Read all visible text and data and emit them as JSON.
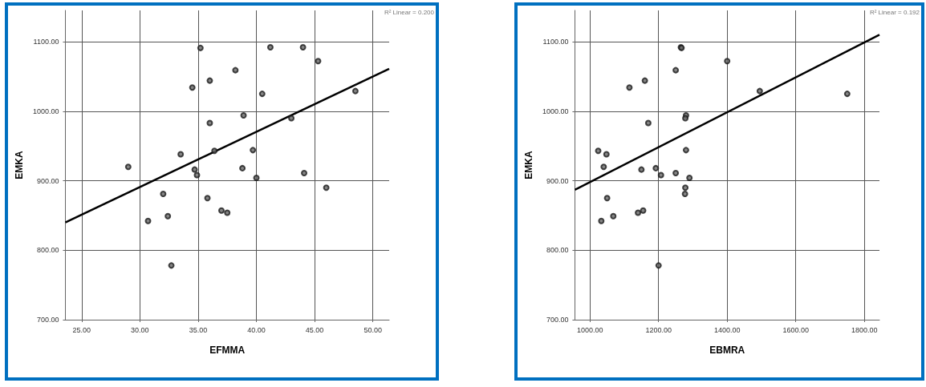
{
  "chart_data": [
    {
      "type": "scatter",
      "xlabel": "EFMMA",
      "ylabel": "EMKA",
      "xlim": [
        23.6,
        51.4
      ],
      "ylim": [
        700,
        1145
      ],
      "xticks": [
        {
          "value": 25,
          "label": "25.00"
        },
        {
          "value": 30,
          "label": "30.00"
        },
        {
          "value": 35,
          "label": "35.00"
        },
        {
          "value": 40,
          "label": "40.00"
        },
        {
          "value": 45,
          "label": "45.00"
        },
        {
          "value": 50,
          "label": "50.00"
        }
      ],
      "yticks": [
        {
          "value": 700,
          "label": "700.00"
        },
        {
          "value": 800,
          "label": "800.00"
        },
        {
          "value": 900,
          "label": "900.00"
        },
        {
          "value": 1000,
          "label": "1000.00"
        },
        {
          "value": 1100,
          "label": "1100.00"
        }
      ],
      "grid": true,
      "annotations": [
        "R² Linear = 0.200"
      ],
      "series": [
        {
          "marker": "circle",
          "color": "#1a1a1a",
          "x": [
            29,
            30.7,
            32,
            32.4,
            32.7,
            33.5,
            34.5,
            34.7,
            34.9,
            35.2,
            35.8,
            36,
            36,
            36.4,
            37,
            37.5,
            38.2,
            38.8,
            38.9,
            39.7,
            40,
            40.5,
            41.2,
            43,
            44,
            44.1,
            45.3,
            46,
            48.5
          ],
          "values": [
            920,
            842,
            881,
            849,
            778,
            938,
            1034,
            916,
            908,
            1091,
            875,
            1044,
            983,
            943,
            857,
            854,
            1059,
            918,
            994,
            944,
            904,
            1025,
            1092,
            990,
            1092,
            911,
            1072,
            890,
            1029
          ]
        },
        {
          "type": "line",
          "marker": "none",
          "color": "#000000",
          "x": [
            23.6,
            51.4
          ],
          "values": [
            840,
            1061
          ]
        }
      ]
    },
    {
      "type": "scatter",
      "xlabel": "EBMRA",
      "ylabel": "EMKA",
      "xlim": [
        956,
        1844
      ],
      "ylim": [
        700,
        1145
      ],
      "xticks": [
        {
          "value": 1000,
          "label": "1000.00"
        },
        {
          "value": 1200,
          "label": "1200.00"
        },
        {
          "value": 1400,
          "label": "1400.00"
        },
        {
          "value": 1600,
          "label": "1600.00"
        },
        {
          "value": 1800,
          "label": "1800.00"
        }
      ],
      "yticks": [
        {
          "value": 700,
          "label": "700.00"
        },
        {
          "value": 800,
          "label": "800.00"
        },
        {
          "value": 900,
          "label": "900.00"
        },
        {
          "value": 1000,
          "label": "1000.00"
        },
        {
          "value": 1100,
          "label": "1100.00"
        }
      ],
      "grid": true,
      "annotations": [
        "R² Linear = 0.192"
      ],
      "series": [
        {
          "marker": "circle",
          "color": "#1a1a1a",
          "x": [
            1024,
            1040,
            1048,
            1050,
            1033,
            1068,
            1115,
            1160,
            1170,
            1150,
            1140,
            1155,
            1192,
            1200,
            1207,
            1250,
            1265,
            1267,
            1250,
            1280,
            1278,
            1280,
            1278,
            1277,
            1290,
            1400,
            1495,
            1750
          ],
          "values": [
            943,
            920,
            938,
            875,
            842,
            849,
            1034,
            1044,
            983,
            916,
            854,
            857,
            918,
            778,
            908,
            1059,
            1092,
            1091,
            911,
            994,
            990,
            944,
            890,
            881,
            904,
            1072,
            1029,
            1025
          ]
        },
        {
          "type": "line",
          "marker": "none",
          "color": "#000000",
          "x": [
            956,
            1844
          ],
          "values": [
            887,
            1110
          ]
        }
      ]
    }
  ]
}
